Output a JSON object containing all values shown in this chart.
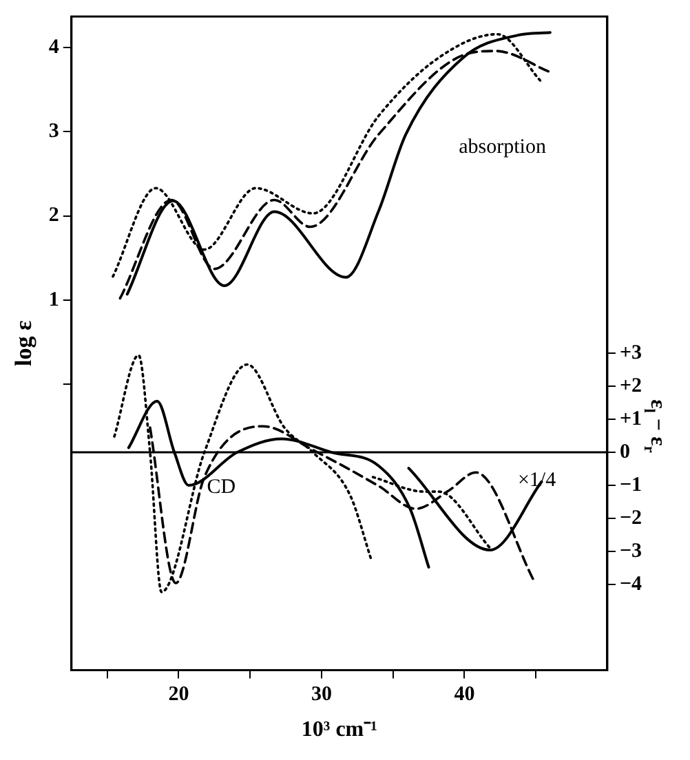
{
  "chart_data": {
    "type": "line",
    "xlabel": "10³ cm⁻¹",
    "ylabel": "log ε",
    "y2label": "ε$_{l}$ − ε$_{r}$",
    "xlim": [
      12.5,
      50
    ],
    "xticks": [
      {
        "value": 15,
        "label": null
      },
      20,
      {
        "value": 25,
        "label": null
      },
      30,
      {
        "value": 35,
        "label": null
      },
      40,
      {
        "value": 45,
        "label": null
      }
    ],
    "ylim": [
      -3.4,
      4.37
    ],
    "yticks": [
      {
        "value": 0,
        "label": null
      },
      1,
      2,
      3,
      4
    ],
    "y2lim": [
      -6.6,
      13.2
    ],
    "y2ticks": [
      {
        "value": -4,
        "label": "−4"
      },
      {
        "value": -3,
        "label": "−3"
      },
      {
        "value": -2,
        "label": "−2"
      },
      {
        "value": -1,
        "label": "−1"
      },
      0,
      {
        "value": 1,
        "label": "+1"
      },
      {
        "value": 2,
        "label": "+2"
      },
      {
        "value": 3,
        "label": "+3"
      }
    ],
    "series": [
      {
        "color": "#000000",
        "line_style": "solid",
        "x": [
          16.4,
          19.6,
          23.2,
          26.7,
          31.7,
          34.0,
          35.9,
          39.9,
          43.8,
          46.0
        ],
        "values": [
          1.07,
          2.18,
          1.17,
          2.05,
          1.27,
          2.06,
          2.97,
          3.88,
          4.15,
          4.18
        ]
      },
      {
        "color": "#000000",
        "line_style": "dashed",
        "x": [
          15.9,
          19.5,
          22.5,
          26.7,
          29.2,
          34.0,
          39.9,
          42.2,
          46.0
        ],
        "values": [
          1.02,
          2.19,
          1.37,
          2.19,
          1.87,
          2.97,
          3.91,
          3.96,
          3.71
        ]
      },
      {
        "color": "#000000",
        "line_style": "dotted",
        "x": [
          15.4,
          18.4,
          21.8,
          25.4,
          29.4,
          34.0,
          38.2,
          42.3,
          45.3
        ],
        "values": [
          1.28,
          2.33,
          1.6,
          2.33,
          2.03,
          3.19,
          3.88,
          4.16,
          3.61
        ]
      },
      {
        "color": "#000000",
        "line_style": "solid",
        "axis": "y2",
        "x": [
          16.5,
          18.5,
          19.7,
          20.7,
          24.1,
          27.2,
          30.7,
          34.0,
          36.2,
          37.5
        ],
        "values": [
          0.14,
          1.55,
          0,
          -1.0,
          0,
          0.41,
          0,
          -0.41,
          -1.71,
          -3.48
        ]
      },
      {
        "color": "#000000",
        "line_style": "solid",
        "axis": "y2",
        "x": [
          36.1,
          41.8,
          45.4
        ],
        "values": [
          -0.48,
          -2.96,
          -0.89
        ]
      },
      {
        "color": "#000000",
        "line_style": "dashed",
        "axis": "y2",
        "x": [
          18.0,
          19.8,
          21.8,
          25.9,
          29.4,
          34.0,
          36.6,
          38.9,
          40.8,
          44.9
        ],
        "values": [
          0.75,
          -3.96,
          -0.75,
          0.79,
          0.07,
          -1.02,
          -1.71,
          -1.16,
          -0.61,
          -3.92
        ]
      },
      {
        "color": "#000000",
        "line_style": "dotted",
        "axis": "y2",
        "x": [
          15.5,
          17.2,
          18.0,
          18.8,
          21.8,
          24.8,
          27.4,
          29.4,
          32.0,
          33.5
        ],
        "values": [
          0.48,
          2.94,
          0,
          -4.23,
          0,
          2.66,
          0.75,
          0,
          -1.3,
          -3.28
        ]
      },
      {
        "color": "#000000",
        "line_style": "dotted",
        "axis": "y2",
        "x": [
          33.6,
          37.2,
          38.2,
          41.8
        ],
        "values": [
          -0.75,
          -1.19,
          -1.19,
          -2.9
        ]
      }
    ],
    "ref_lines": [
      {
        "axis": "y2",
        "value": 0,
        "color": "#000000"
      }
    ],
    "annotations": [
      "absorption",
      "CD",
      "×1/4"
    ],
    "grid": false,
    "legend": false,
    "marker": "none"
  }
}
